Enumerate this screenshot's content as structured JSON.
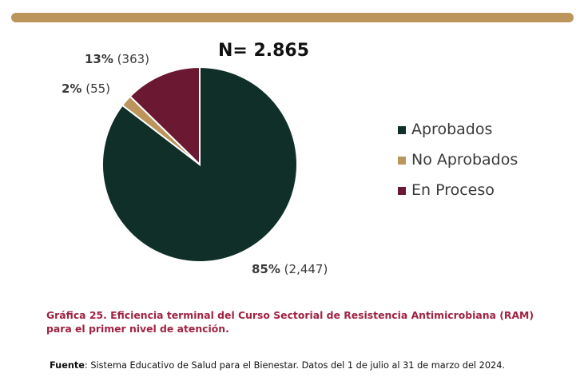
{
  "chart_data": {
    "type": "pie",
    "total_label": "N= 2.865",
    "slices": [
      {
        "name": "Aprobados",
        "value": 2447,
        "percent_label": "85%",
        "count_label": "(2,447)",
        "color": "#0f2f28"
      },
      {
        "name": "No Aprobados",
        "value": 55,
        "percent_label": "2%",
        "count_label": "(55)",
        "color": "#bc955c"
      },
      {
        "name": "En Proceso",
        "value": 363,
        "percent_label": "13%",
        "count_label": "(363)",
        "color": "#6b1933"
      }
    ],
    "legend_position": "right"
  },
  "caption": "Gráfica 25. Eficiencia terminal del Curso Sectorial de Resistencia  Antimicrobiana (RAM) para el primer nivel de atención.",
  "source": {
    "label": "Fuente",
    "text": ": Sistema Educativo de Salud para el Bienestar. Datos del 1 de julio al 31 de marzo del 2024."
  },
  "colors": {
    "accent_bar": "#bc955c",
    "caption": "#9f2241"
  }
}
